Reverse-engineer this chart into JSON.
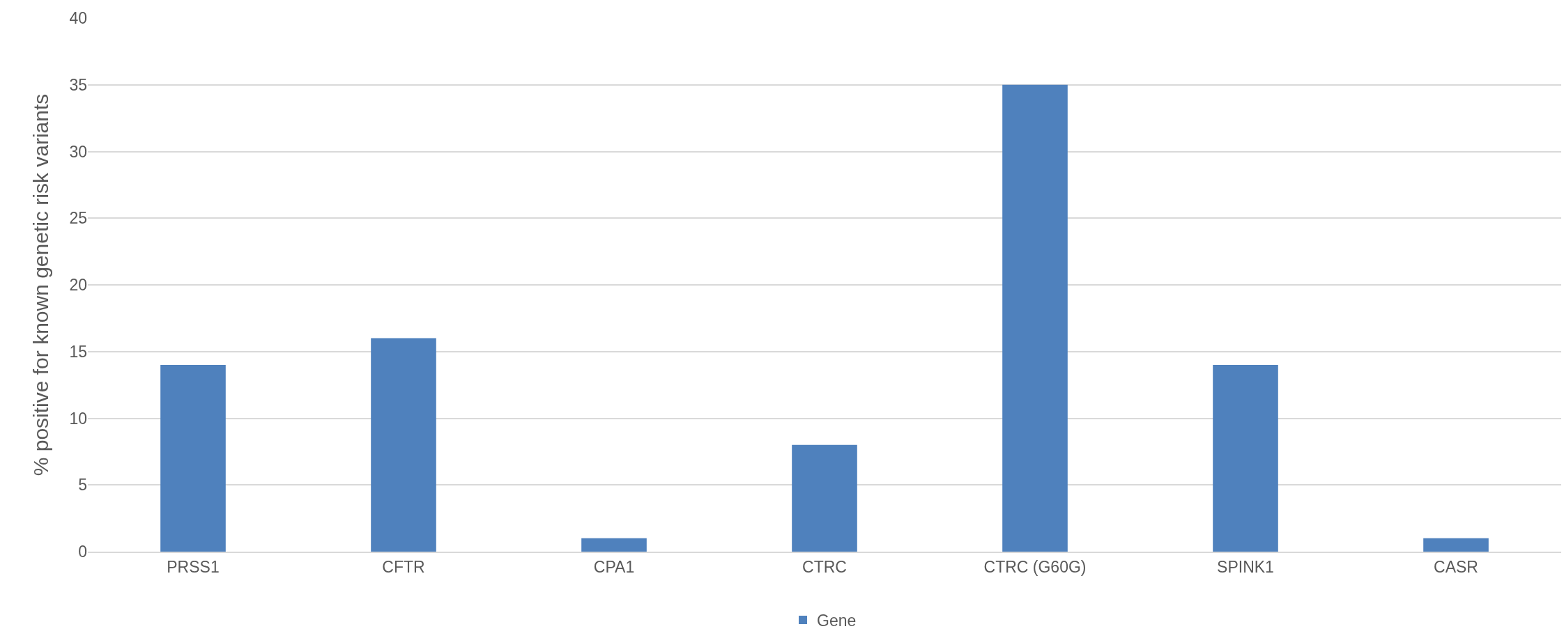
{
  "chart_data": {
    "type": "bar",
    "ylabel": "% positive for known genetic risk variants",
    "categories": [
      "PRSS1",
      "CFTR",
      "CPA1",
      "CTRC",
      "CTRC (G60G)",
      "SPINK1",
      "CASR"
    ],
    "series": [
      {
        "name": "Gene",
        "color": "#4f81bd",
        "values": [
          14,
          16,
          1,
          8,
          35,
          14,
          1
        ]
      }
    ],
    "ylim": [
      0,
      40
    ],
    "yticks": [
      0,
      5,
      10,
      15,
      20,
      25,
      30,
      35,
      40
    ],
    "grid": "y",
    "legend": "bottom"
  }
}
